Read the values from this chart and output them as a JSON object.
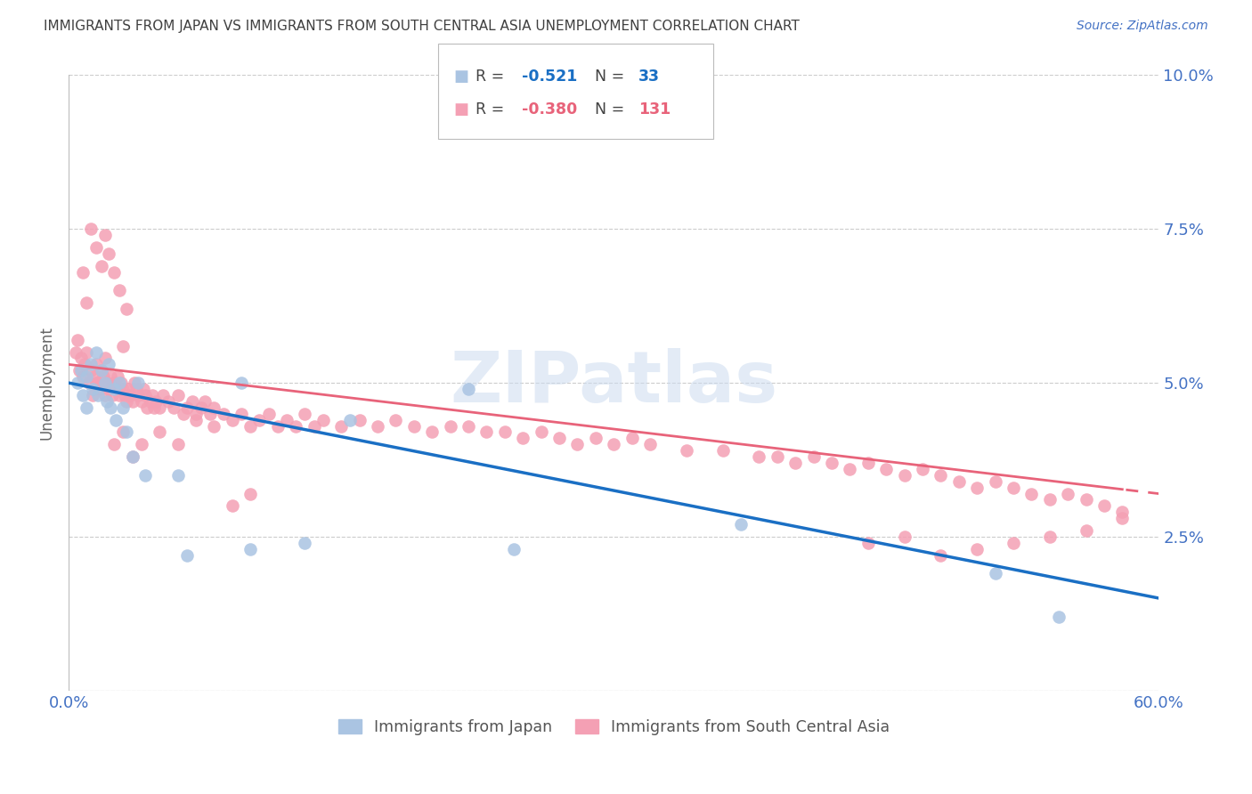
{
  "title": "IMMIGRANTS FROM JAPAN VS IMMIGRANTS FROM SOUTH CENTRAL ASIA UNEMPLOYMENT CORRELATION CHART",
  "source": "Source: ZipAtlas.com",
  "ylabel": "Unemployment",
  "xlim": [
    0.0,
    0.6
  ],
  "ylim": [
    0.0,
    0.1
  ],
  "blue_color": "#aac4e2",
  "pink_color": "#f4a0b4",
  "line_blue": "#1a6fc4",
  "line_pink": "#e8637a",
  "axis_label_color": "#4472c4",
  "title_color": "#404040",
  "watermark": "ZIPatlas",
  "japan_x": [
    0.005,
    0.007,
    0.008,
    0.01,
    0.01,
    0.012,
    0.013,
    0.015,
    0.016,
    0.018,
    0.02,
    0.021,
    0.022,
    0.023,
    0.025,
    0.026,
    0.028,
    0.03,
    0.032,
    0.035,
    0.038,
    0.042,
    0.06,
    0.065,
    0.095,
    0.1,
    0.13,
    0.155,
    0.22,
    0.245,
    0.37,
    0.51,
    0.545
  ],
  "japan_y": [
    0.05,
    0.052,
    0.048,
    0.051,
    0.046,
    0.053,
    0.049,
    0.055,
    0.048,
    0.052,
    0.05,
    0.047,
    0.053,
    0.046,
    0.049,
    0.044,
    0.05,
    0.046,
    0.042,
    0.038,
    0.05,
    0.035,
    0.035,
    0.022,
    0.05,
    0.023,
    0.024,
    0.044,
    0.049,
    0.023,
    0.027,
    0.019,
    0.012
  ],
  "sca_x": [
    0.004,
    0.005,
    0.006,
    0.007,
    0.008,
    0.009,
    0.01,
    0.011,
    0.012,
    0.013,
    0.014,
    0.015,
    0.016,
    0.017,
    0.018,
    0.019,
    0.02,
    0.021,
    0.022,
    0.023,
    0.024,
    0.025,
    0.026,
    0.027,
    0.028,
    0.029,
    0.03,
    0.031,
    0.032,
    0.033,
    0.034,
    0.035,
    0.036,
    0.037,
    0.038,
    0.04,
    0.041,
    0.042,
    0.043,
    0.045,
    0.046,
    0.047,
    0.048,
    0.05,
    0.052,
    0.055,
    0.058,
    0.06,
    0.063,
    0.065,
    0.068,
    0.07,
    0.073,
    0.075,
    0.078,
    0.08,
    0.085,
    0.09,
    0.095,
    0.1,
    0.105,
    0.11,
    0.115,
    0.12,
    0.125,
    0.13,
    0.135,
    0.14,
    0.15,
    0.16,
    0.17,
    0.18,
    0.19,
    0.2,
    0.21,
    0.22,
    0.23,
    0.24,
    0.25,
    0.26,
    0.27,
    0.28,
    0.29,
    0.3,
    0.31,
    0.32,
    0.34,
    0.36,
    0.38,
    0.39,
    0.4,
    0.41,
    0.42,
    0.43,
    0.44,
    0.45,
    0.46,
    0.47,
    0.48,
    0.49,
    0.5,
    0.51,
    0.52,
    0.53,
    0.54,
    0.55,
    0.56,
    0.57,
    0.58,
    0.008,
    0.01,
    0.012,
    0.015,
    0.018,
    0.02,
    0.022,
    0.025,
    0.028,
    0.03,
    0.032,
    0.015,
    0.02,
    0.025,
    0.03,
    0.035,
    0.04,
    0.05,
    0.06,
    0.07,
    0.08,
    0.09,
    0.1,
    0.58,
    0.56,
    0.54,
    0.52,
    0.5,
    0.48,
    0.46,
    0.44
  ],
  "sca_y": [
    0.055,
    0.057,
    0.052,
    0.054,
    0.051,
    0.053,
    0.055,
    0.05,
    0.052,
    0.048,
    0.051,
    0.053,
    0.05,
    0.049,
    0.052,
    0.051,
    0.048,
    0.05,
    0.049,
    0.051,
    0.048,
    0.05,
    0.049,
    0.051,
    0.048,
    0.05,
    0.049,
    0.048,
    0.047,
    0.049,
    0.048,
    0.047,
    0.05,
    0.049,
    0.048,
    0.047,
    0.049,
    0.048,
    0.046,
    0.047,
    0.048,
    0.046,
    0.047,
    0.046,
    0.048,
    0.047,
    0.046,
    0.048,
    0.045,
    0.046,
    0.047,
    0.045,
    0.046,
    0.047,
    0.045,
    0.046,
    0.045,
    0.044,
    0.045,
    0.043,
    0.044,
    0.045,
    0.043,
    0.044,
    0.043,
    0.045,
    0.043,
    0.044,
    0.043,
    0.044,
    0.043,
    0.044,
    0.043,
    0.042,
    0.043,
    0.043,
    0.042,
    0.042,
    0.041,
    0.042,
    0.041,
    0.04,
    0.041,
    0.04,
    0.041,
    0.04,
    0.039,
    0.039,
    0.038,
    0.038,
    0.037,
    0.038,
    0.037,
    0.036,
    0.037,
    0.036,
    0.035,
    0.036,
    0.035,
    0.034,
    0.033,
    0.034,
    0.033,
    0.032,
    0.031,
    0.032,
    0.031,
    0.03,
    0.029,
    0.068,
    0.063,
    0.075,
    0.072,
    0.069,
    0.074,
    0.071,
    0.068,
    0.065,
    0.056,
    0.062,
    0.05,
    0.054,
    0.04,
    0.042,
    0.038,
    0.04,
    0.042,
    0.04,
    0.044,
    0.043,
    0.03,
    0.032,
    0.028,
    0.026,
    0.025,
    0.024,
    0.023,
    0.022,
    0.025,
    0.024
  ]
}
